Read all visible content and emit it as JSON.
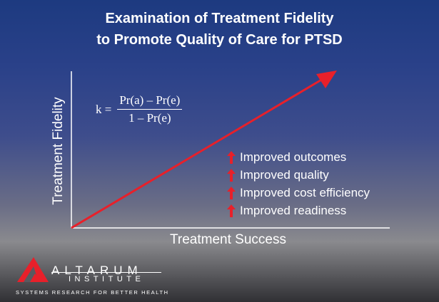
{
  "title": {
    "line1": "Examination of Treatment Fidelity",
    "line2": "to Promote Quality of Care for PTSD"
  },
  "axes": {
    "y_label": "Treatment Fidelity",
    "x_label": "Treatment Success"
  },
  "formula": {
    "lhs": "k =",
    "numerator": "Pr(a) – Pr(e)",
    "denominator": "1 – Pr(e)"
  },
  "outcomes": [
    {
      "icon": "up-arrow-icon",
      "label": "Improved outcomes"
    },
    {
      "icon": "up-arrow-icon",
      "label": "Improved quality"
    },
    {
      "icon": "up-arrow-icon",
      "label": "Improved cost efficiency"
    },
    {
      "icon": "up-arrow-icon",
      "label": "Improved readiness"
    }
  ],
  "brand": {
    "name": "ALTARUM",
    "sub": "INSTITUTE",
    "tagline": "SYSTEMS RESEARCH FOR BETTER HEALTH"
  },
  "colors": {
    "accent_red": "#e8202a",
    "text": "#ffffff",
    "axis": "#ffffff"
  }
}
